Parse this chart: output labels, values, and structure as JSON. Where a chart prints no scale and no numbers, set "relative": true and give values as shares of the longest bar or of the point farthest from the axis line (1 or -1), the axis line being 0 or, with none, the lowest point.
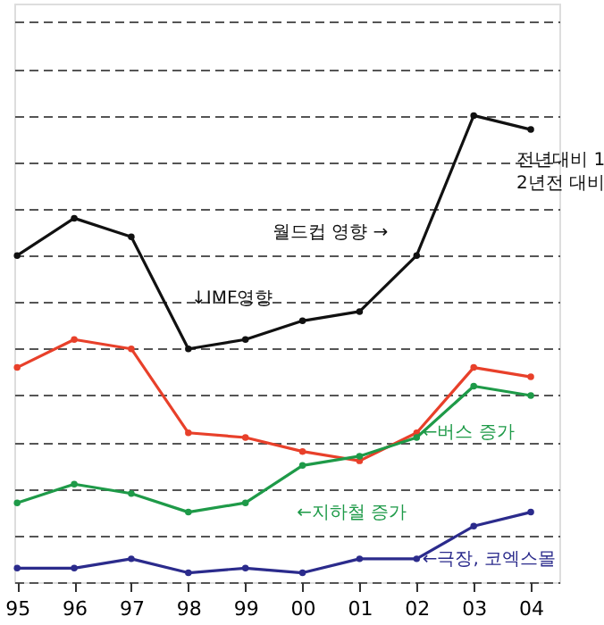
{
  "chart_data": {
    "type": "line",
    "relative": true,
    "grid": "y",
    "line_style": "solid",
    "marker": "circle",
    "categories": [
      "95",
      "96",
      "97",
      "98",
      "99",
      "00",
      "01",
      "02",
      "03",
      "04"
    ],
    "series": [
      {
        "color": "#111111",
        "values": [
          0.7,
          0.78,
          0.74,
          0.5,
          0.52,
          0.56,
          0.58,
          0.7,
          1.0,
          0.97
        ]
      },
      {
        "color": "#e8402a",
        "values": [
          0.46,
          0.52,
          0.5,
          0.32,
          0.31,
          0.28,
          0.26,
          0.32,
          0.46,
          0.44
        ]
      },
      {
        "color": "#1e9a48",
        "values": [
          0.17,
          0.21,
          0.19,
          0.15,
          0.17,
          0.25,
          0.27,
          0.31,
          0.42,
          0.4
        ]
      },
      {
        "color": "#2b2b8c",
        "values": [
          0.03,
          0.03,
          0.05,
          0.02,
          0.03,
          0.02,
          0.05,
          0.05,
          0.12,
          0.15
        ]
      }
    ],
    "annotations": [
      "전년대비 1",
      "2년전 대비",
      "월드컵 영향 →",
      "↓IMF영향",
      "←버스 증가",
      "←지하철 증가",
      "←극장, 코엑스몰"
    ]
  }
}
